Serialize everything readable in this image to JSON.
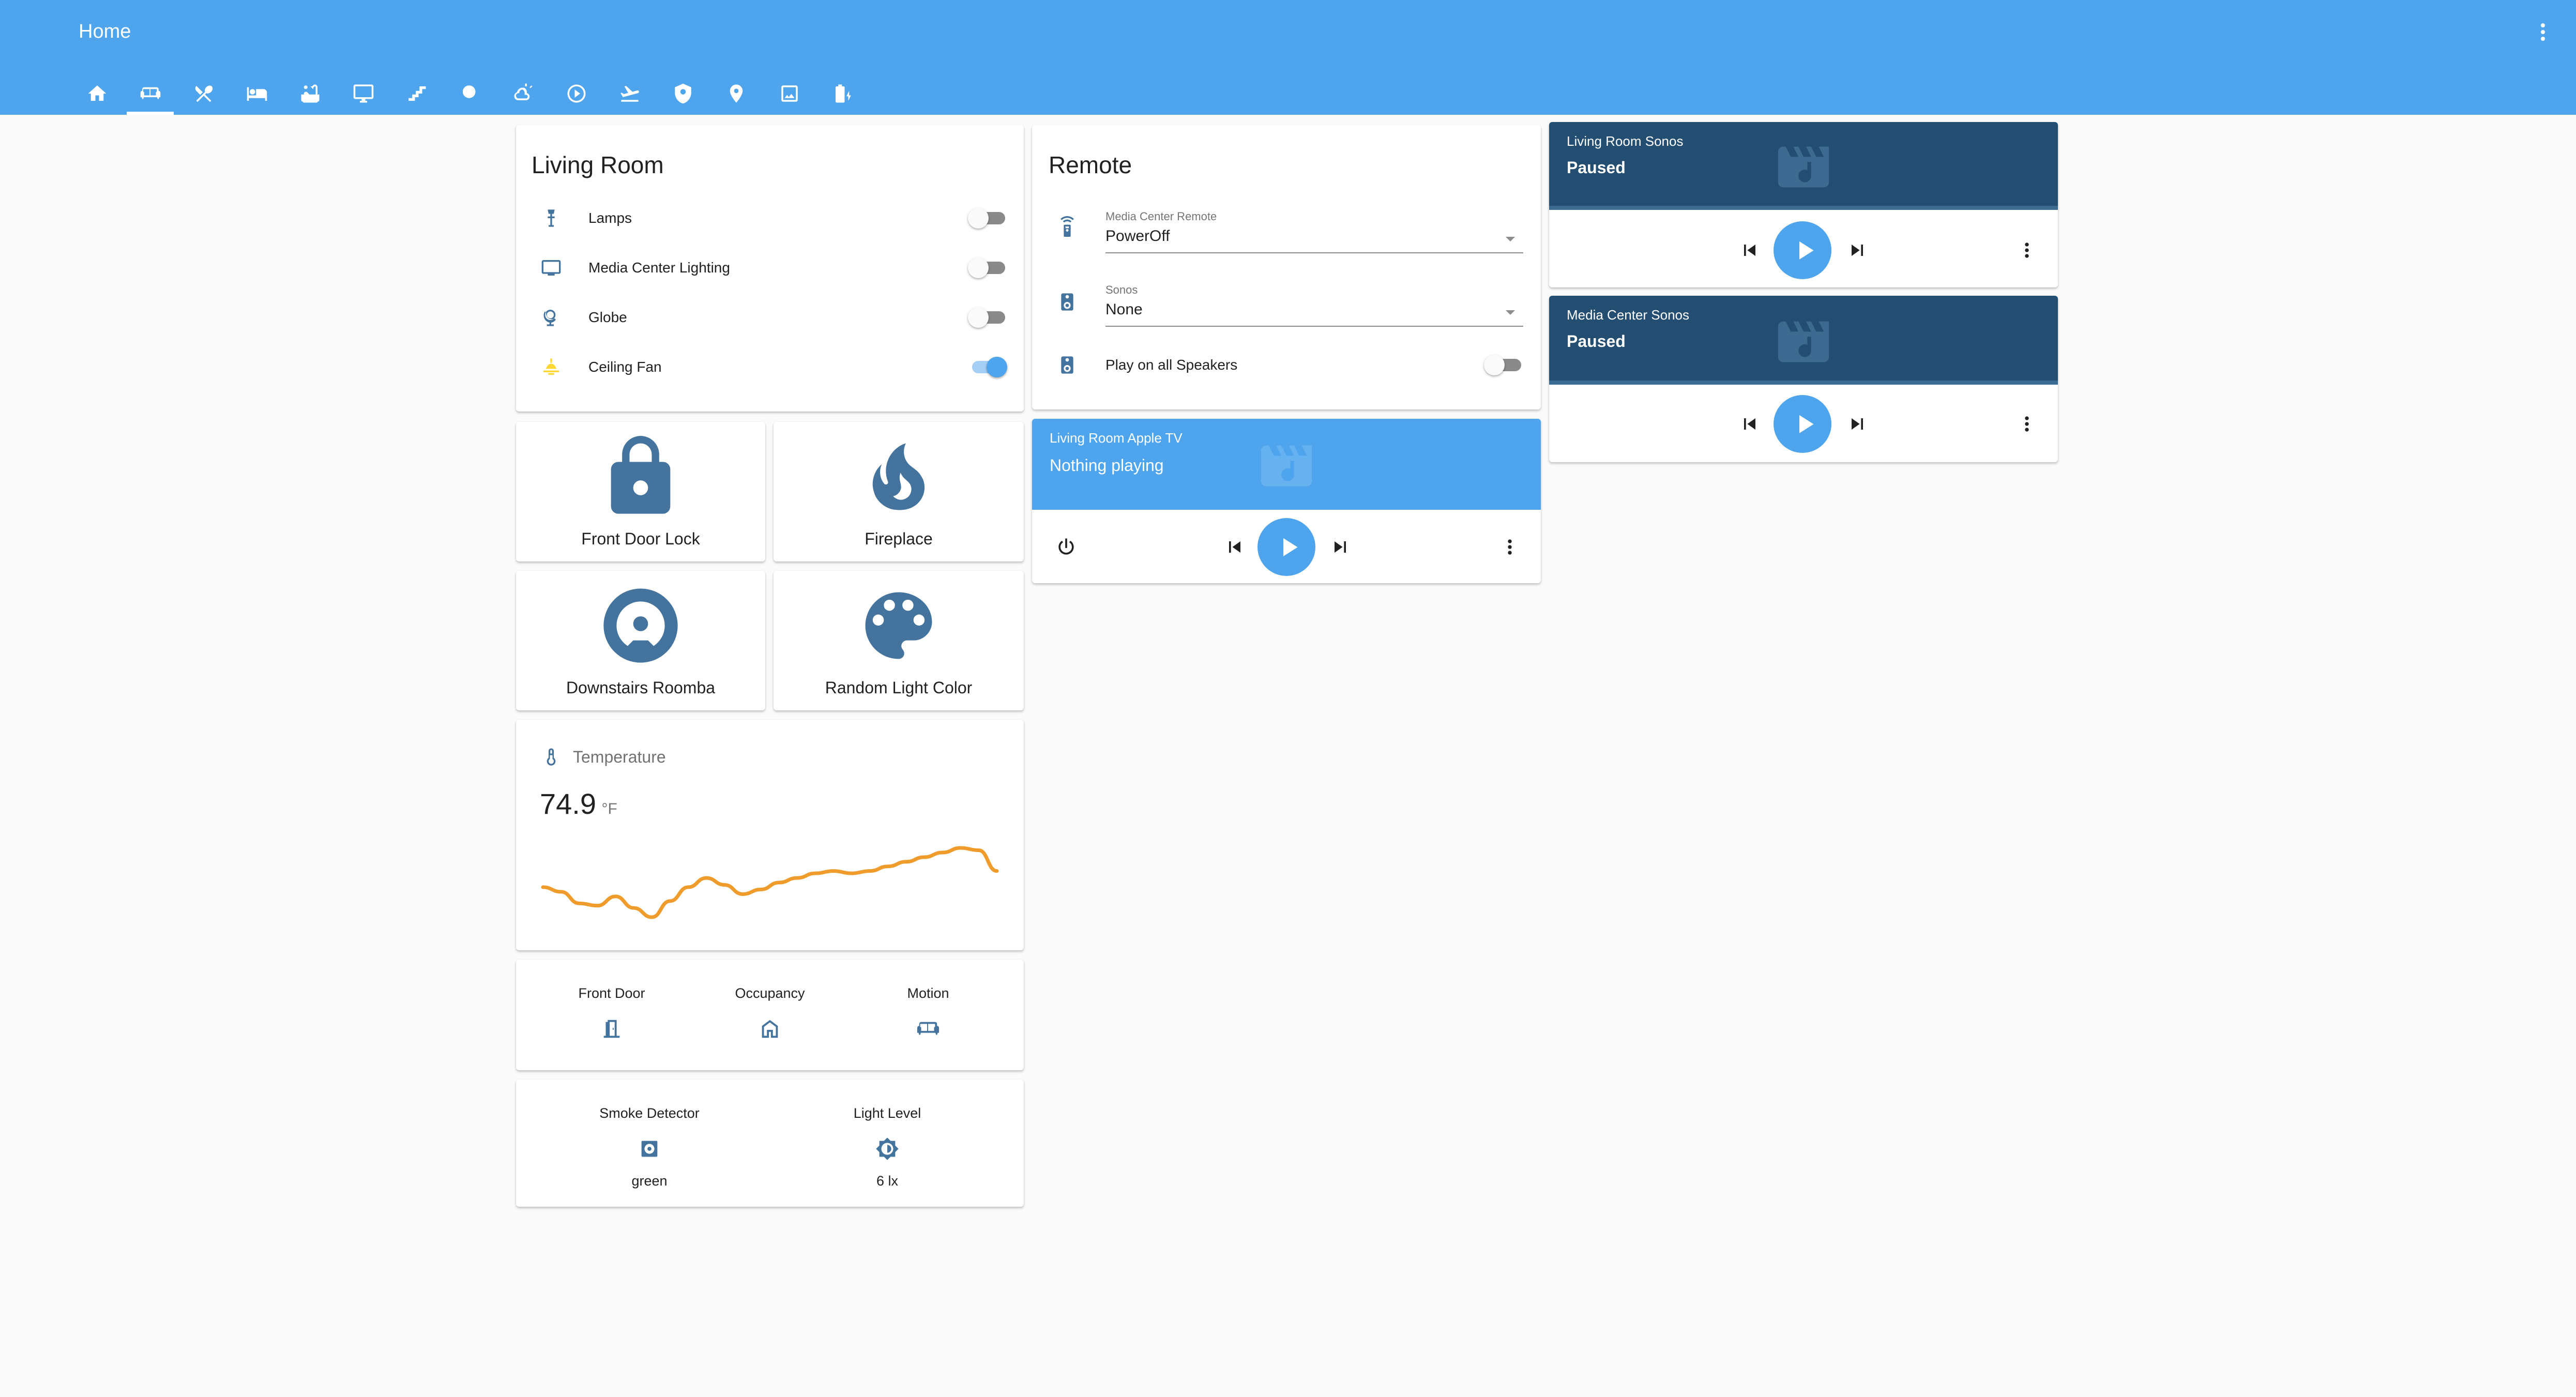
{
  "app": {
    "title": "Home"
  },
  "header": {
    "menu_icon": "dots-vertical-icon",
    "tabs": [
      {
        "icon": "home-icon"
      },
      {
        "icon": "sofa-icon",
        "active": true
      },
      {
        "icon": "silverware-icon"
      },
      {
        "icon": "bed-icon"
      },
      {
        "icon": "bathtub-icon"
      },
      {
        "icon": "monitor-icon"
      },
      {
        "icon": "stairs-icon"
      },
      {
        "icon": "tree-icon"
      },
      {
        "icon": "weather-icon"
      },
      {
        "icon": "play-circle-icon"
      },
      {
        "icon": "airplane-icon"
      },
      {
        "icon": "shield-icon"
      },
      {
        "icon": "map-marker-icon"
      },
      {
        "icon": "image-icon"
      },
      {
        "icon": "battery-charging-icon"
      }
    ]
  },
  "living_room": {
    "title": "Living Room",
    "entities": [
      {
        "label": "Lamps",
        "icon": "lamp-icon",
        "on": false
      },
      {
        "label": "Media Center Lighting",
        "icon": "television-icon",
        "on": false
      },
      {
        "label": "Globe",
        "icon": "globe-icon",
        "on": false
      },
      {
        "label": "Ceiling Fan",
        "icon": "ceiling-light-icon",
        "on": true
      }
    ]
  },
  "buttons": [
    {
      "label": "Front Door Lock",
      "icon": "lock-icon"
    },
    {
      "label": "Fireplace",
      "icon": "fire-icon"
    },
    {
      "label": "Downstairs Roomba",
      "icon": "robot-vacuum-icon"
    },
    {
      "label": "Random Light Color",
      "icon": "palette-icon"
    }
  ],
  "temperature": {
    "name": "Temperature",
    "value": "74.9",
    "unit": "°F",
    "icon": "thermometer-icon",
    "line_color": "#ef9c2d"
  },
  "chart_data": {
    "type": "line",
    "title": "",
    "xlabel": "",
    "ylabel": "",
    "series": [
      {
        "values": [
          73.2,
          73.0,
          72.5,
          72.4,
          72.8,
          72.3,
          71.9,
          72.6,
          73.2,
          73.6,
          73.3,
          72.9,
          73.1,
          73.4,
          73.6,
          73.8,
          73.9,
          73.8,
          73.9,
          74.1,
          74.3,
          74.5,
          74.7,
          74.9,
          74.8,
          73.9
        ]
      }
    ]
  },
  "binary_sensors": [
    {
      "name": "Front Door",
      "icon": "door-icon"
    },
    {
      "name": "Occupancy",
      "icon": "home-outline-icon"
    },
    {
      "name": "Motion",
      "icon": "sofa-icon"
    }
  ],
  "sensors": [
    {
      "name": "Smoke Detector",
      "value": "green",
      "icon": "smoke-detector-icon"
    },
    {
      "name": "Light Level",
      "value": "6 lx",
      "icon": "brightness-icon"
    }
  ],
  "remote": {
    "title": "Remote",
    "media_center_remote": {
      "label": "Media Center Remote",
      "value": "PowerOff",
      "icon": "remote-icon"
    },
    "sonos": {
      "label": "Sonos",
      "value": "None",
      "icon": "speaker-icon"
    },
    "play_all": {
      "label": "Play on all Speakers",
      "icon": "speaker-icon",
      "on": false
    }
  },
  "apple_tv": {
    "name": "Living Room Apple TV",
    "state": "Nothing playing",
    "header_color": "#4fa5ed"
  },
  "sonos_players": [
    {
      "name": "Living Room Sonos",
      "state": "Paused",
      "header_color": "#234e71"
    },
    {
      "name": "Media Center Sonos",
      "state": "Paused",
      "header_color": "#234e71"
    }
  ]
}
